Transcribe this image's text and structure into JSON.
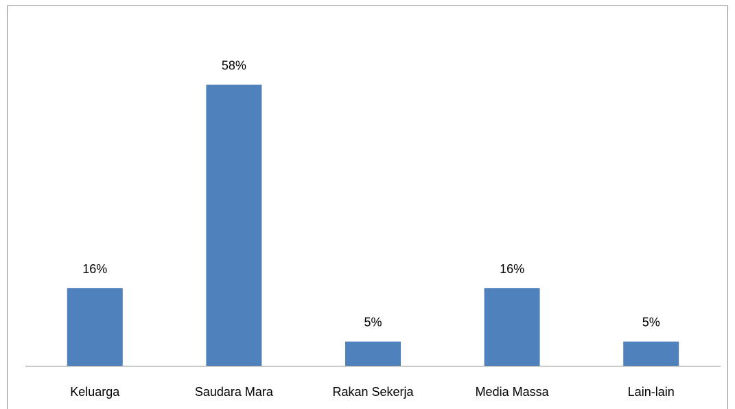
{
  "chart_data": {
    "type": "bar",
    "categories": [
      "Keluarga",
      "Saudara Mara",
      "Rakan Sekerja",
      "Media Massa",
      "Lain-lain"
    ],
    "values": [
      16,
      58,
      5,
      16,
      5
    ],
    "value_labels": [
      "16%",
      "58%",
      "5%",
      "16%",
      "5%"
    ],
    "color": "#4f81bd"
  }
}
